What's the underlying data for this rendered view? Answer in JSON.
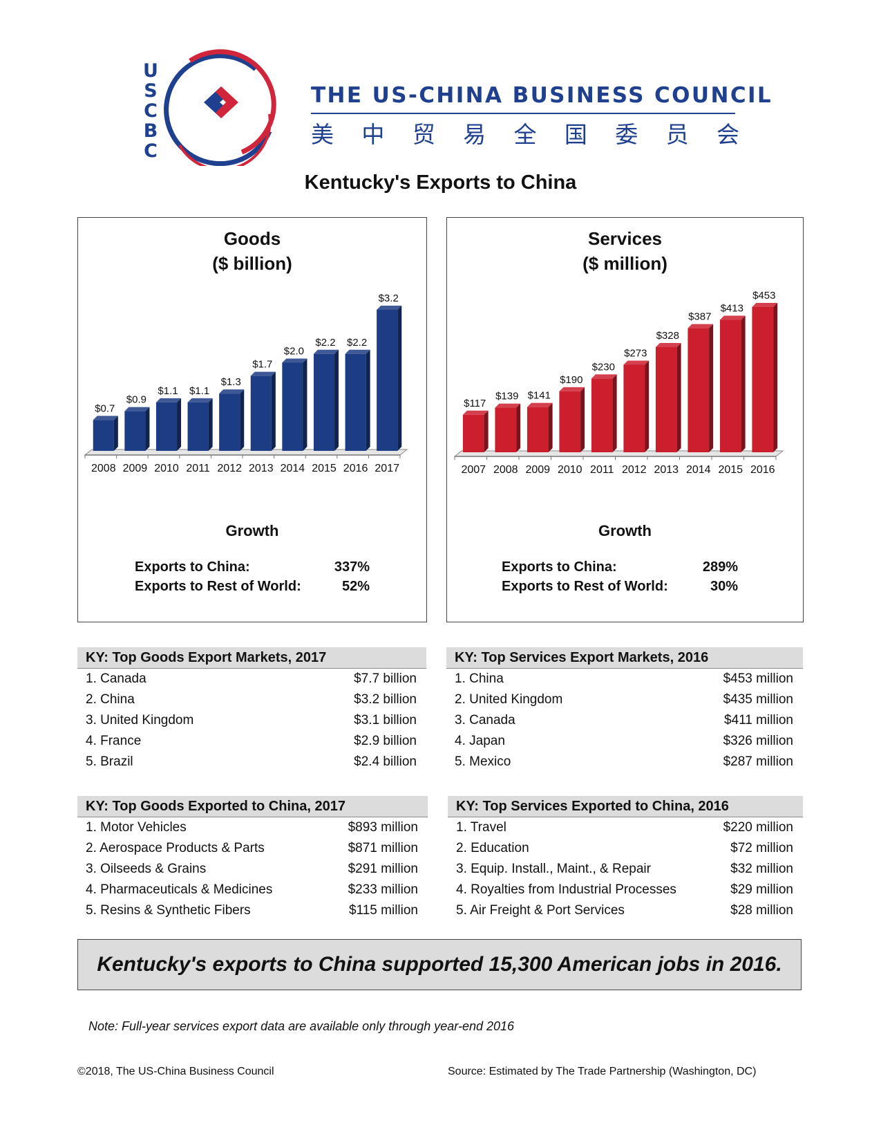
{
  "header": {
    "logo_letters": [
      "U",
      "S",
      "C",
      "B",
      "C"
    ],
    "org_name": "THE US-CHINA BUSINESS COUNCIL",
    "org_name_chinese": [
      "美",
      "中",
      "贸",
      "易",
      "全",
      "国",
      "委",
      "员",
      "会"
    ],
    "brand_colors": {
      "blue": "#1f3f8f",
      "red": "#d0253a"
    }
  },
  "title": "Kentucky's Exports to China",
  "goods_panel": {
    "title_line1": "Goods",
    "title_line2": "($ billion)",
    "growth_title": "Growth",
    "growth_rows": [
      {
        "label": "Exports to China:",
        "value": "337%"
      },
      {
        "label": "Exports to Rest of World:",
        "value": "52%"
      }
    ]
  },
  "services_panel": {
    "title_line1": "Services",
    "title_line2": "($ million)",
    "growth_title": "Growth",
    "growth_rows": [
      {
        "label": "Exports to China:",
        "value": "289%"
      },
      {
        "label": "Exports to Rest of World:",
        "value": "30%"
      }
    ]
  },
  "chart_data": [
    {
      "type": "bar",
      "title": "Goods ($ billion)",
      "categories": [
        "2008",
        "2009",
        "2010",
        "2011",
        "2012",
        "2013",
        "2014",
        "2015",
        "2016",
        "2017"
      ],
      "values": [
        0.7,
        0.9,
        1.1,
        1.1,
        1.3,
        1.7,
        2.0,
        2.2,
        2.2,
        3.2
      ],
      "labels": [
        "$0.7",
        "$0.9",
        "$1.1",
        "$1.1",
        "$1.3",
        "$1.7",
        "$2.0",
        "$2.2",
        "$2.2",
        "$3.2"
      ],
      "color": "#1c3c84",
      "ylim": [
        0,
        3.2
      ],
      "grid": false
    },
    {
      "type": "bar",
      "title": "Services ($ million)",
      "categories": [
        "2007",
        "2008",
        "2009",
        "2010",
        "2011",
        "2012",
        "2013",
        "2014",
        "2015",
        "2016"
      ],
      "values": [
        117,
        139,
        141,
        190,
        230,
        273,
        328,
        387,
        413,
        453
      ],
      "labels": [
        "$117",
        "$139",
        "$141",
        "$190",
        "$230",
        "$273",
        "$328",
        "$387",
        "$413",
        "$453"
      ],
      "color": "#cc1f2e",
      "ylim": [
        0,
        453
      ],
      "grid": false
    }
  ],
  "tables": {
    "goods_markets": {
      "title": "KY: Top Goods Export Markets, 2017",
      "rows": [
        {
          "name": "1. Canada",
          "value": "$7.7 billion"
        },
        {
          "name": "2. China",
          "value": "$3.2 billion"
        },
        {
          "name": "3. United Kingdom",
          "value": "$3.1 billion"
        },
        {
          "name": "4. France",
          "value": "$2.9 billion"
        },
        {
          "name": "5. Brazil",
          "value": "$2.4 billion"
        }
      ]
    },
    "services_markets": {
      "title": "KY: Top Services Export Markets, 2016",
      "rows": [
        {
          "name": "1. China",
          "value": "$453 million"
        },
        {
          "name": "2. United Kingdom",
          "value": "$435 million"
        },
        {
          "name": "3. Canada",
          "value": "$411 million"
        },
        {
          "name": "4. Japan",
          "value": "$326 million"
        },
        {
          "name": "5. Mexico",
          "value": "$287 million"
        }
      ]
    },
    "goods_to_china": {
      "title": "KY: Top Goods Exported to China, 2017",
      "rows": [
        {
          "name": "1. Motor Vehicles",
          "value": "$893 million"
        },
        {
          "name": "2. Aerospace Products & Parts",
          "value": "$871 million"
        },
        {
          "name": "3. Oilseeds & Grains",
          "value": "$291 million"
        },
        {
          "name": "4. Pharmaceuticals & Medicines",
          "value": "$233 million"
        },
        {
          "name": "5. Resins & Synthetic Fibers",
          "value": "$115 million"
        }
      ]
    },
    "services_to_china": {
      "title": "KY: Top Services Exported to China, 2016",
      "rows": [
        {
          "name": "1. Travel",
          "value": "$220 million"
        },
        {
          "name": "2. Education",
          "value": "$72 million"
        },
        {
          "name": "3. Equip. Install., Maint., & Repair",
          "value": "$32 million"
        },
        {
          "name": "4. Royalties from Industrial Processes",
          "value": "$29 million"
        },
        {
          "name": "5. Air Freight & Port Services",
          "value": "$28 million"
        }
      ]
    }
  },
  "banner": "Kentucky's exports to China supported 15,300 American jobs in 2016.",
  "note": "Note: Full-year services export data are available only through year-end 2016",
  "footer": {
    "copyright": "©2018, The US-China Business Council",
    "source": "Source: Estimated by The Trade Partnership (Washington, DC)"
  }
}
